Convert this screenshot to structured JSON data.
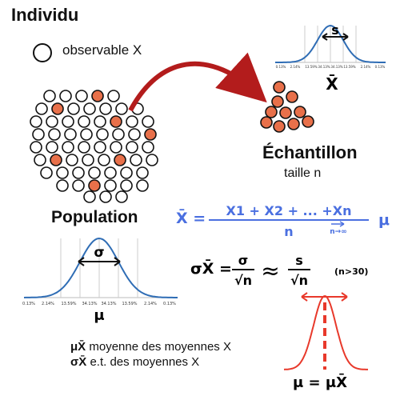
{
  "title": "Individu",
  "legend_observable": "observable X",
  "sample_label": "Échantillon",
  "sample_size": "taille n",
  "population_label": "Population",
  "xbar": "X̄",
  "sample_spread": "s",
  "pop_spread": "σ",
  "pop_mean": "μ",
  "percents": [
    "0.13%",
    "2.14%",
    "13.59%",
    "34.13%",
    "34.13%",
    "13.59%",
    "2.14%",
    "0.13%"
  ],
  "mean_formula": {
    "lhs": "X̄ =",
    "numerator": "X1 + X2 + ... +Xn",
    "denominator": "n",
    "limit_sub": "n→∞",
    "rhs": "μ"
  },
  "sigma_formula": {
    "lhs": "σX̄ =",
    "num1": "σ",
    "den1": "√n",
    "approx": "≈",
    "num2": "s",
    "den2": "√n",
    "note": "(n>30)"
  },
  "legend_lines": [
    {
      "sym": "μX̄",
      "text": " moyenne des moyennes X"
    },
    {
      "sym": "σX̄",
      "text": " e.t. des moyennes X"
    }
  ],
  "sampling_dist_label": "μ = μX̄",
  "colors": {
    "accent": "#e8704a",
    "arrow": "#b31c1c",
    "curve": "#2f6db5",
    "formula": "#4a6fe0",
    "red": "#e8392b"
  }
}
